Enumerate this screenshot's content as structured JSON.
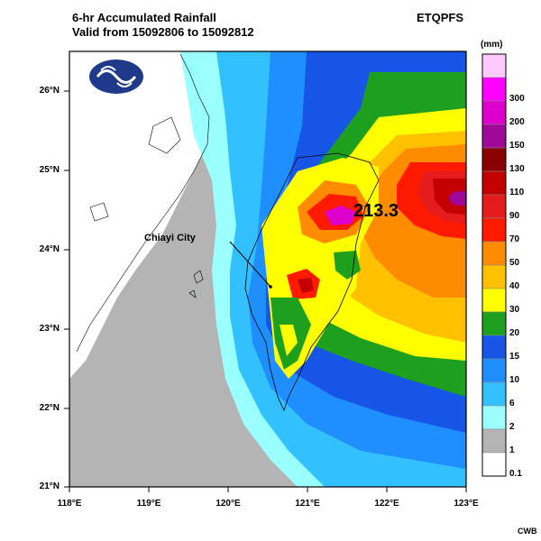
{
  "header": {
    "title_line1": "6-hr Accumulated Rainfall",
    "title_line2": "Valid from 15092806 to 15092812",
    "model": "ETQPFS",
    "credit": "CWB"
  },
  "legend": {
    "unit": "(mm)",
    "bins": [
      {
        "label": "",
        "color": "#ffc8ff"
      },
      {
        "label": "300",
        "color": "#ff00ff"
      },
      {
        "label": "200",
        "color": "#dd00cc"
      },
      {
        "label": "150",
        "color": "#a0089a"
      },
      {
        "label": "130",
        "color": "#8b0000"
      },
      {
        "label": "110",
        "color": "#c40000"
      },
      {
        "label": "90",
        "color": "#e61b1b"
      },
      {
        "label": "70",
        "color": "#ff1a00"
      },
      {
        "label": "50",
        "color": "#ff8c00"
      },
      {
        "label": "40",
        "color": "#ffc000"
      },
      {
        "label": "30",
        "color": "#ffff00"
      },
      {
        "label": "20",
        "color": "#1ea01e"
      },
      {
        "label": "15",
        "color": "#1655e6"
      },
      {
        "label": "10",
        "color": "#1f8fff"
      },
      {
        "label": "6",
        "color": "#33c0ff"
      },
      {
        "label": "2",
        "color": "#99ffff"
      },
      {
        "label": "1",
        "color": "#b4b4b4"
      },
      {
        "label": "0.1",
        "color": "#ffffff"
      }
    ]
  },
  "axes": {
    "lat_labels": [
      "26°N",
      "25°N",
      "24°N",
      "23°N",
      "22°N",
      "21°N"
    ],
    "lon_labels": [
      "118°E",
      "119°E",
      "120°E",
      "121°E",
      "122°E",
      "123°E"
    ]
  },
  "annotations": {
    "max_value": "213.3",
    "city_label": "Chiayi City"
  },
  "logo_icon": "cwb-logo-icon"
}
